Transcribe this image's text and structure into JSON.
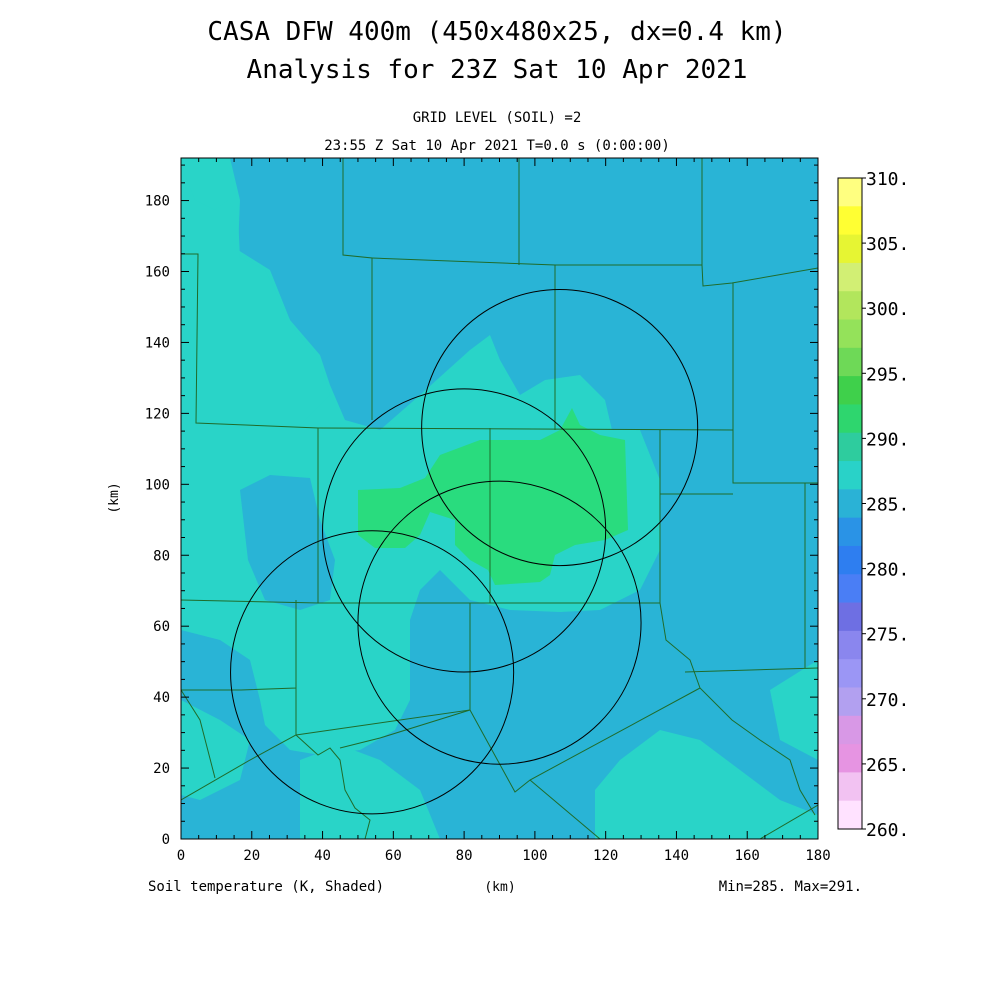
{
  "header": {
    "title_line1": "CASA DFW 400m (450x480x25, dx=0.4 km)",
    "title_line2": "Analysis for 23Z Sat 10 Apr 2021",
    "level_label": "GRID LEVEL (SOIL) =2",
    "time_label": "23:55 Z Sat 10 Apr 2021   T=0.0 s (0:00:00)"
  },
  "axes": {
    "x_ticks": [
      "0",
      "20",
      "40",
      "60",
      "80",
      "100",
      "120",
      "140",
      "160",
      "180"
    ],
    "y_ticks": [
      "0",
      "20",
      "40",
      "60",
      "80",
      "100",
      "120",
      "140",
      "160",
      "180"
    ],
    "x_label": "(km)",
    "y_label": "(km)",
    "x_range": [
      0,
      180
    ],
    "y_range": [
      0,
      192
    ]
  },
  "footer": {
    "field_label": "Soil temperature (K, Shaded)",
    "minmax": "Min=285. Max=291."
  },
  "colorbar": {
    "labels": [
      "310.",
      "305.",
      "300.",
      "295.",
      "290.",
      "285.",
      "280.",
      "275.",
      "270.",
      "265.",
      "260."
    ],
    "colors": [
      "#ffff80",
      "#ffff33",
      "#e6f533",
      "#d2ef74",
      "#b2e65c",
      "#94e25a",
      "#6ed957",
      "#3fd04b",
      "#2ed66e",
      "#2ecc9e",
      "#29d2c8",
      "#2ab2d6",
      "#2a93e6",
      "#2e7ef0",
      "#4a7ef5",
      "#6e6fe3",
      "#8a86ee",
      "#9b96f5",
      "#b2a0f0",
      "#d898e6",
      "#e694e2",
      "#f2c2f2",
      "#ffe2ff"
    ]
  },
  "map": {
    "field_colors": {
      "cool": "#29b4d6",
      "mid": "#29d4c8",
      "warm": "#29dc7e"
    },
    "radar_circles_km": [
      {
        "cx": 107,
        "cy": 116,
        "r": 39
      },
      {
        "cx": 80,
        "cy": 87,
        "r": 40
      },
      {
        "cx": 90,
        "cy": 61,
        "r": 40
      },
      {
        "cx": 54,
        "cy": 47,
        "r": 40
      }
    ]
  }
}
